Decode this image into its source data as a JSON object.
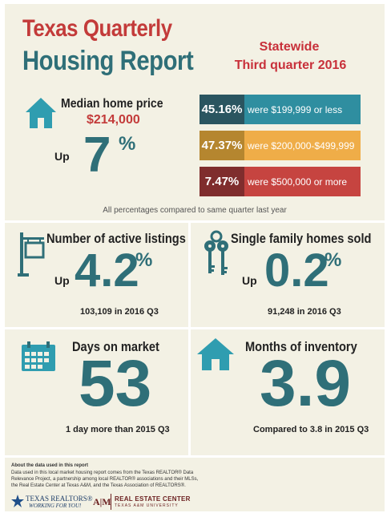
{
  "header": {
    "title_line1": "Texas Quarterly",
    "title_line2": "Housing Report",
    "scope": "Statewide",
    "period": "Third quarter 2016"
  },
  "median_price": {
    "label": "Median home price",
    "value": "$214,000",
    "direction": "Up",
    "change": "7",
    "pct_sign": "%"
  },
  "price_bands": [
    {
      "pct": "45.16%",
      "label": "were $199,999 or less",
      "color": "#2f8ea0"
    },
    {
      "pct": "47.37%",
      "label": "were $200,000-$499,999",
      "color": "#efad48"
    },
    {
      "pct": "7.47%",
      "label": "were $500,000 or more",
      "color": "#c64440"
    }
  ],
  "compare_note": "All percentages compared to same quarter last year",
  "active_listings": {
    "label": "Number of active listings",
    "direction": "Up",
    "change": "4.2",
    "pct_sign": "%",
    "detail": "103,109 in 2016 Q3"
  },
  "homes_sold": {
    "label": "Single family homes sold",
    "direction": "Up",
    "change": "0.2",
    "pct_sign": "%",
    "detail": "91,248 in 2016 Q3"
  },
  "days_on_market": {
    "label": "Days on market",
    "value": "53",
    "detail": "1 day more than 2015 Q3"
  },
  "months_inventory": {
    "label": "Months of inventory",
    "value": "3.9",
    "detail": "Compared to 3.8 in 2015 Q3"
  },
  "footer": {
    "heading": "About the data used in this report",
    "text_line1": "Data used in this local market housing report comes from the Texas REALTOR® Data",
    "text_line2": "Relevance Project, a partnership among local REALTOR® associations and their MLSs,",
    "text_line3": "the Real Estate Center at Texas A&M, and the Texas Association of REALTORS®.",
    "logo1_name": "TEXAS REALTORS®",
    "logo1_tagline": "WORKING FOR YOU!",
    "logo2_mark": "A|M",
    "logo2_name": "REAL ESTATE CENTER",
    "logo2_sub": "TEXAS A&M UNIVERSITY"
  },
  "colors": {
    "teal": "#2f6f78",
    "red": "#c33b3a",
    "background": "#f3f1e4"
  }
}
